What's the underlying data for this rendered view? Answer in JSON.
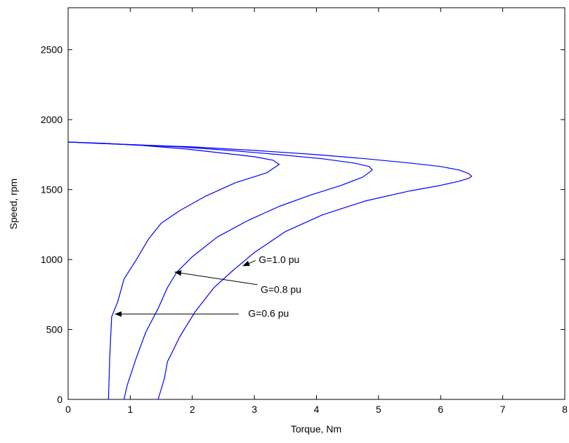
{
  "chart_data": {
    "type": "line",
    "title": "",
    "xlabel": "Torque, Nm",
    "ylabel": "Speed, rpm",
    "xlim": [
      0,
      8
    ],
    "ylim": [
      0,
      2800
    ],
    "xticks": [
      0,
      1,
      2,
      3,
      4,
      5,
      6,
      7,
      8
    ],
    "yticks": [
      0,
      500,
      1000,
      1500,
      2000,
      2500
    ],
    "grid": false,
    "line_color": "#0000ff",
    "series": [
      {
        "name": "G=1.0 pu",
        "points": [
          [
            1.45,
            0
          ],
          [
            1.55,
            150
          ],
          [
            1.6,
            270
          ],
          [
            1.8,
            450
          ],
          [
            2.05,
            630
          ],
          [
            2.35,
            800
          ],
          [
            2.65,
            920
          ],
          [
            3.0,
            1050
          ],
          [
            3.5,
            1200
          ],
          [
            4.1,
            1320
          ],
          [
            4.8,
            1420
          ],
          [
            5.5,
            1490
          ],
          [
            6.0,
            1530
          ],
          [
            6.3,
            1560
          ],
          [
            6.45,
            1580
          ],
          [
            6.5,
            1595
          ],
          [
            6.45,
            1615
          ],
          [
            6.3,
            1640
          ],
          [
            6.0,
            1665
          ],
          [
            5.5,
            1690
          ],
          [
            4.8,
            1720
          ],
          [
            4.0,
            1750
          ],
          [
            3.0,
            1780
          ],
          [
            2.0,
            1805
          ],
          [
            1.0,
            1822
          ],
          [
            0.5,
            1830
          ],
          [
            0,
            1840
          ]
        ]
      },
      {
        "name": "G=0.8 pu",
        "points": [
          [
            0.9,
            0
          ],
          [
            0.95,
            100
          ],
          [
            1.1,
            300
          ],
          [
            1.25,
            480
          ],
          [
            1.45,
            650
          ],
          [
            1.6,
            800
          ],
          [
            1.75,
            910
          ],
          [
            2.0,
            1020
          ],
          [
            2.4,
            1160
          ],
          [
            2.9,
            1280
          ],
          [
            3.4,
            1380
          ],
          [
            3.9,
            1460
          ],
          [
            4.4,
            1530
          ],
          [
            4.75,
            1590
          ],
          [
            4.9,
            1640
          ],
          [
            4.85,
            1665
          ],
          [
            4.6,
            1690
          ],
          [
            4.1,
            1720
          ],
          [
            3.4,
            1750
          ],
          [
            2.6,
            1780
          ],
          [
            1.8,
            1805
          ],
          [
            1.0,
            1822
          ],
          [
            0.5,
            1832
          ],
          [
            0,
            1840
          ]
        ]
      },
      {
        "name": "G=0.6 pu",
        "points": [
          [
            0.65,
            0
          ],
          [
            0.67,
            300
          ],
          [
            0.7,
            590
          ],
          [
            0.8,
            700
          ],
          [
            0.9,
            860
          ],
          [
            1.1,
            1000
          ],
          [
            1.3,
            1150
          ],
          [
            1.5,
            1260
          ],
          [
            1.8,
            1350
          ],
          [
            2.2,
            1450
          ],
          [
            2.7,
            1550
          ],
          [
            3.2,
            1620
          ],
          [
            3.4,
            1680
          ],
          [
            3.3,
            1710
          ],
          [
            3.0,
            1735
          ],
          [
            2.5,
            1760
          ],
          [
            1.9,
            1790
          ],
          [
            1.2,
            1815
          ],
          [
            0.6,
            1830
          ],
          [
            0,
            1840
          ]
        ]
      }
    ],
    "annotations": [
      {
        "text": "G=1.0 pu",
        "label_at": [
          3.07,
          993
        ],
        "arrow_from": [
          3.02,
          993
        ],
        "arrow_to": [
          2.82,
          955
        ]
      },
      {
        "text": "G=0.8 pu",
        "label_at": [
          3.1,
          780
        ],
        "arrow_from": [
          3.05,
          820
        ],
        "arrow_to": [
          1.72,
          910
        ]
      },
      {
        "text": "G=0.6 pu",
        "label_at": [
          2.9,
          610
        ],
        "arrow_from": [
          2.75,
          610
        ],
        "arrow_to": [
          0.76,
          610
        ]
      }
    ]
  }
}
